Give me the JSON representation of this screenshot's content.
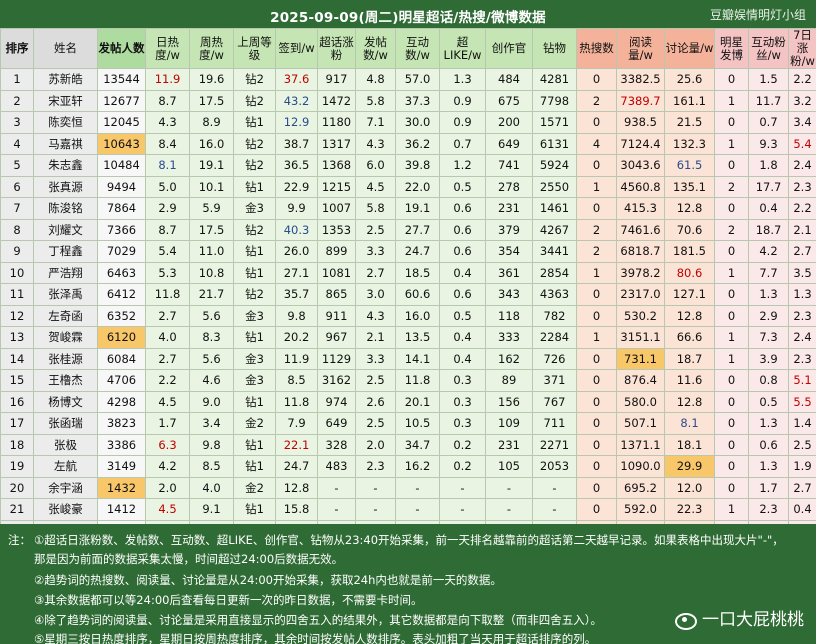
{
  "header": {
    "title": "2025-09-09(周二)明星超话/热搜/微博数据",
    "watermark": "豆瓣娱情明灯小组"
  },
  "columns": [
    "排序",
    "姓名",
    "发帖人数",
    "日热度/w",
    "周热度/w",
    "上周等级",
    "签到/w",
    "超话涨粉",
    "发帖数/w",
    "互动数/w",
    "超LIKE/w",
    "创作官",
    "钻物",
    "热搜数",
    "阅读量/w",
    "讨论量/w",
    "明星发博",
    "互动粉丝/w",
    "7日涨粉/w"
  ],
  "rows": [
    [
      "1",
      "苏新皓",
      "13544",
      "11.9",
      "19.6",
      "钻2",
      "37.6",
      "917",
      "4.8",
      "57.0",
      "1.3",
      "484",
      "4281",
      "0",
      "3382.5",
      "25.6",
      "0",
      "1.5",
      "2.2"
    ],
    [
      "2",
      "宋亚轩",
      "12677",
      "8.7",
      "17.5",
      "钻2",
      "43.2",
      "1472",
      "5.8",
      "37.3",
      "0.9",
      "675",
      "7798",
      "2",
      "7389.7",
      "161.1",
      "1",
      "11.7",
      "3.2"
    ],
    [
      "3",
      "陈奕恒",
      "12045",
      "4.3",
      "8.9",
      "钻1",
      "12.9",
      "1180",
      "7.1",
      "30.0",
      "0.9",
      "200",
      "1571",
      "0",
      "938.5",
      "21.5",
      "0",
      "0.7",
      "3.4"
    ],
    [
      "4",
      "马嘉祺",
      "10643",
      "8.4",
      "16.0",
      "钻2",
      "38.7",
      "1317",
      "4.3",
      "36.2",
      "0.7",
      "649",
      "6131",
      "4",
      "7124.4",
      "132.3",
      "1",
      "9.3",
      "5.4"
    ],
    [
      "5",
      "朱志鑫",
      "10484",
      "8.1",
      "19.1",
      "钻2",
      "36.5",
      "1368",
      "6.0",
      "39.8",
      "1.2",
      "741",
      "5924",
      "0",
      "3043.6",
      "61.5",
      "0",
      "1.8",
      "2.4"
    ],
    [
      "6",
      "张真源",
      "9494",
      "5.0",
      "10.1",
      "钻1",
      "22.9",
      "1215",
      "4.5",
      "22.0",
      "0.5",
      "278",
      "2550",
      "1",
      "4560.8",
      "135.1",
      "2",
      "17.7",
      "2.3"
    ],
    [
      "7",
      "陈浚铭",
      "7864",
      "2.9",
      "5.9",
      "金3",
      "9.9",
      "1007",
      "5.8",
      "19.1",
      "0.6",
      "231",
      "1461",
      "0",
      "415.3",
      "12.8",
      "0",
      "0.4",
      "2.2"
    ],
    [
      "8",
      "刘耀文",
      "7366",
      "8.7",
      "17.5",
      "钻2",
      "40.3",
      "1353",
      "2.5",
      "27.7",
      "0.6",
      "379",
      "4267",
      "2",
      "7461.6",
      "70.6",
      "2",
      "18.7",
      "2.1"
    ],
    [
      "9",
      "丁程鑫",
      "7029",
      "5.4",
      "11.0",
      "钻1",
      "26.0",
      "899",
      "3.3",
      "24.7",
      "0.6",
      "354",
      "3441",
      "2",
      "6818.7",
      "181.5",
      "0",
      "4.2",
      "2.7"
    ],
    [
      "10",
      "严浩翔",
      "6463",
      "5.3",
      "10.8",
      "钻1",
      "27.1",
      "1081",
      "2.7",
      "18.5",
      "0.4",
      "361",
      "2854",
      "1",
      "3978.2",
      "80.6",
      "1",
      "7.7",
      "3.5"
    ],
    [
      "11",
      "张泽禹",
      "6412",
      "11.8",
      "21.7",
      "钻2",
      "35.7",
      "865",
      "3.0",
      "60.6",
      "0.6",
      "343",
      "4363",
      "0",
      "2317.0",
      "127.1",
      "0",
      "1.3",
      "1.3"
    ],
    [
      "12",
      "左奇函",
      "6352",
      "2.7",
      "5.6",
      "金3",
      "9.8",
      "911",
      "4.3",
      "16.0",
      "0.5",
      "118",
      "782",
      "0",
      "530.2",
      "12.8",
      "0",
      "2.9",
      "2.3"
    ],
    [
      "13",
      "贺峻霖",
      "6120",
      "4.0",
      "8.3",
      "钻1",
      "20.2",
      "967",
      "2.1",
      "13.5",
      "0.4",
      "333",
      "2284",
      "1",
      "3151.1",
      "66.6",
      "1",
      "7.3",
      "2.4"
    ],
    [
      "14",
      "张桂源",
      "6084",
      "2.7",
      "5.6",
      "金3",
      "11.9",
      "1129",
      "3.3",
      "14.1",
      "0.4",
      "162",
      "726",
      "0",
      "731.1",
      "18.7",
      "1",
      "3.9",
      "2.3"
    ],
    [
      "15",
      "王橹杰",
      "4706",
      "2.2",
      "4.6",
      "金3",
      "8.5",
      "3162",
      "2.5",
      "11.8",
      "0.3",
      "89",
      "371",
      "0",
      "876.4",
      "11.6",
      "0",
      "0.8",
      "5.1"
    ],
    [
      "16",
      "杨博文",
      "4298",
      "4.5",
      "9.0",
      "钻1",
      "11.8",
      "974",
      "2.6",
      "20.1",
      "0.3",
      "156",
      "767",
      "0",
      "580.0",
      "12.8",
      "0",
      "0.5",
      "5.5"
    ],
    [
      "17",
      "张函瑞",
      "3823",
      "1.7",
      "3.4",
      "金2",
      "7.9",
      "649",
      "2.5",
      "10.5",
      "0.3",
      "109",
      "711",
      "0",
      "507.1",
      "8.1",
      "0",
      "1.3",
      "1.4"
    ],
    [
      "18",
      "张极",
      "3386",
      "6.3",
      "9.8",
      "钻1",
      "22.1",
      "328",
      "2.0",
      "34.7",
      "0.2",
      "231",
      "2271",
      "0",
      "1371.1",
      "18.1",
      "0",
      "0.6",
      "2.5"
    ],
    [
      "19",
      "左航",
      "3149",
      "4.2",
      "8.5",
      "钻1",
      "24.7",
      "483",
      "2.3",
      "16.2",
      "0.2",
      "105",
      "2053",
      "0",
      "1090.0",
      "29.9",
      "0",
      "1.3",
      "1.9"
    ],
    [
      "20",
      "余宇涵",
      "1432",
      "2.0",
      "4.0",
      "金2",
      "12.8",
      "-",
      "-",
      "-",
      "-",
      "-",
      "-",
      "0",
      "695.2",
      "12.0",
      "0",
      "1.7",
      "2.7"
    ],
    [
      "21",
      "张峻豪",
      "1412",
      "4.5",
      "9.1",
      "钻1",
      "15.8",
      "-",
      "-",
      "-",
      "-",
      "-",
      "-",
      "0",
      "592.0",
      "22.3",
      "1",
      "2.3",
      "0.4"
    ],
    [
      "22",
      "穆祉丞",
      "1394",
      "5.0",
      "9.1",
      "钻1",
      "6.9",
      "-",
      "-",
      "-",
      "-",
      "-",
      "-",
      "0",
      "719.2",
      "7.1",
      "0",
      "0.8",
      "3.7"
    ],
    [
      "23",
      "邓佳鑫",
      "1301",
      "2.2",
      "4.4",
      "金3",
      "2.2",
      "-",
      "-",
      "-",
      "-",
      "-",
      "-",
      "0",
      "392.4",
      "8.0",
      "0",
      "0.3",
      "1.3"
    ]
  ],
  "notes": {
    "label": "注：",
    "lines": [
      "①超话日涨粉数、发帖数、互动数、超LIKE、创作官、钻物从23:40开始采集，前一天排名越靠前的超话第二天越早记录。如果表格中出现大片\"-\"，",
      "那是因为前面的数据采集太慢，时间超过24:00后数据无效。",
      "②趋势词的热搜数、阅读量、讨论量是从24:00开始采集，获取24h内也就是前一天的数据。",
      "③其余数据都可以等24:00后查看每日更新一次的昨日数据，不需要卡时间。",
      "④除了趋势词的阅读量、讨论量是采用直接显示的四舍五入的结果外，其它数据都是向下取整（而非四舍五入）。",
      "⑤星期三按日热度排序，星期日按周热度排序，其余时间按发帖人数排序。表头加粗了当天用于超话排序的列。"
    ],
    "brand": "一口大屁桃桃"
  },
  "icons": {
    "brand_icon": "weibo-icon"
  },
  "colors": {
    "title_bg": "#2f6b35",
    "red_value": "#c00000",
    "blue_value": "#2a4b8d",
    "highlight": "#f8c76a"
  }
}
